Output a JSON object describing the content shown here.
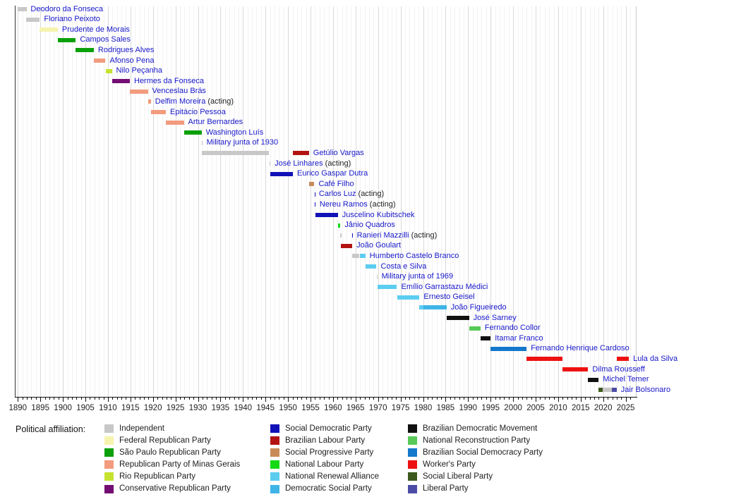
{
  "chart_data": {
    "type": "timeline",
    "description": "Timeline of Brazilian presidents by political affiliation",
    "legend_title": "Political affiliation:",
    "axis": {
      "start_year": 1890,
      "end_year": 2026,
      "minor_interval": 1,
      "label_interval": 5,
      "tick_labels": [
        "1890",
        "1895",
        "1900",
        "1905",
        "1910",
        "1915",
        "1920",
        "1925",
        "1930",
        "1935",
        "1940",
        "1945",
        "1950",
        "1955",
        "1960",
        "1965",
        "1970",
        "1975",
        "1980",
        "1985",
        "1990",
        "1995",
        "2000",
        "2005",
        "2010",
        "2015",
        "2020",
        "2025"
      ]
    },
    "parties": [
      {
        "id": "independent",
        "label": "Independent",
        "color": "#c8c8c8"
      },
      {
        "id": "federal_republican",
        "label": "Federal Republican Party",
        "color": "#f6f4ae"
      },
      {
        "id": "sp_republican",
        "label": "São Paulo Republican Party",
        "color": "#0ba00b"
      },
      {
        "id": "minas_republican",
        "label": "Republican Party of Minas Gerais",
        "color": "#f29b7d"
      },
      {
        "id": "rio_republican",
        "label": "Rio Republican Party",
        "color": "#c6e230"
      },
      {
        "id": "conservative_republican",
        "label": "Conservative Republican Party",
        "color": "#730d73"
      },
      {
        "id": "social_democratic",
        "label": "Social Democratic Party",
        "color": "#1111b8"
      },
      {
        "id": "brazilian_labour",
        "label": "Brazilian Labour Party",
        "color": "#b31212"
      },
      {
        "id": "social_progressive",
        "label": "Social Progressive Party",
        "color": "#c98a57"
      },
      {
        "id": "national_labour",
        "label": "National Labour Party",
        "color": "#16d916"
      },
      {
        "id": "national_renewal",
        "label": "National Renewal Alliance",
        "color": "#5ccdf0"
      },
      {
        "id": "democratic_social",
        "label": "Democratic Social Party",
        "color": "#3fb4e6"
      },
      {
        "id": "brazilian_democratic",
        "label": "Brazilian Democratic Movement",
        "color": "#111111"
      },
      {
        "id": "national_reconstruction",
        "label": "National Reconstruction Party",
        "color": "#57c957"
      },
      {
        "id": "social_democracy",
        "label": "Brazilian Social Democracy Party",
        "color": "#1478cc"
      },
      {
        "id": "workers",
        "label": "Worker's Party",
        "color": "#ee1111"
      },
      {
        "id": "social_liberal",
        "label": "Social Liberal Party",
        "color": "#3d591d"
      },
      {
        "id": "liberal",
        "label": "Liberal Party",
        "color": "#4c4ca6"
      }
    ],
    "legend_columns": [
      [
        "independent",
        "federal_republican",
        "sp_republican",
        "minas_republican",
        "rio_republican",
        "conservative_republican"
      ],
      [
        "social_democratic",
        "brazilian_labour",
        "social_progressive",
        "national_labour",
        "national_renewal",
        "democratic_social"
      ],
      [
        "brazilian_democratic",
        "national_reconstruction",
        "social_democracy",
        "workers",
        "social_liberal",
        "liberal"
      ]
    ],
    "acting_suffix": "(acting)",
    "presidents": [
      {
        "name": "Deodoro da Fonseca",
        "segments": [
          {
            "party": "independent",
            "start": 1889.87,
            "end": 1891.9
          }
        ]
      },
      {
        "name": "Floriano Peixoto",
        "segments": [
          {
            "party": "independent",
            "start": 1891.9,
            "end": 1894.87
          }
        ]
      },
      {
        "name": "Prudente de Morais",
        "segments": [
          {
            "party": "federal_republican",
            "start": 1894.87,
            "end": 1898.87
          }
        ]
      },
      {
        "name": "Campos Sales",
        "segments": [
          {
            "party": "sp_republican",
            "start": 1898.87,
            "end": 1902.87
          }
        ]
      },
      {
        "name": "Rodrigues Alves",
        "segments": [
          {
            "party": "sp_republican",
            "start": 1902.87,
            "end": 1906.87
          }
        ]
      },
      {
        "name": "Afonso Pena",
        "segments": [
          {
            "party": "minas_republican",
            "start": 1906.87,
            "end": 1909.46
          }
        ]
      },
      {
        "name": "Nilo Peçanha",
        "segments": [
          {
            "party": "rio_republican",
            "start": 1909.46,
            "end": 1910.87
          }
        ]
      },
      {
        "name": "Hermes da Fonseca",
        "segments": [
          {
            "party": "conservative_republican",
            "start": 1910.87,
            "end": 1914.87
          }
        ]
      },
      {
        "name": "Venceslau Brás",
        "segments": [
          {
            "party": "minas_republican",
            "start": 1914.87,
            "end": 1918.87
          }
        ]
      },
      {
        "name": "Delfim Moreira",
        "acting": true,
        "segments": [
          {
            "party": "minas_republican",
            "start": 1918.87,
            "end": 1919.54
          }
        ]
      },
      {
        "name": "Epitácio Pessoa",
        "segments": [
          {
            "party": "minas_republican",
            "start": 1919.54,
            "end": 1922.87
          }
        ]
      },
      {
        "name": "Artur Bernardes",
        "segments": [
          {
            "party": "minas_republican",
            "start": 1922.87,
            "end": 1926.87
          }
        ]
      },
      {
        "name": "Washington Luís",
        "segments": [
          {
            "party": "sp_republican",
            "start": 1926.87,
            "end": 1930.82
          }
        ]
      },
      {
        "name": "Military junta of 1930",
        "segments": [
          {
            "party": "independent",
            "start": 1930.82,
            "end": 1930.95
          }
        ]
      },
      {
        "name": "Getúlio Vargas",
        "segments": [
          {
            "party": "independent",
            "start": 1930.84,
            "end": 1945.83
          },
          {
            "party": "brazilian_labour",
            "start": 1951.08,
            "end": 1954.65
          }
        ]
      },
      {
        "name": "José Linhares",
        "acting": true,
        "segments": [
          {
            "party": "independent",
            "start": 1945.83,
            "end": 1946.08
          }
        ]
      },
      {
        "name": "Eurico Gaspar Dutra",
        "segments": [
          {
            "party": "social_democratic",
            "start": 1946.08,
            "end": 1951.08
          }
        ]
      },
      {
        "name": "Café Filho",
        "segments": [
          {
            "party": "social_progressive",
            "start": 1954.65,
            "end": 1955.86
          }
        ]
      },
      {
        "name": "Carlos Luz",
        "acting": true,
        "segments": [
          {
            "party": "social_democratic",
            "start": 1955.86,
            "end": 1955.92
          }
        ]
      },
      {
        "name": "Nereu Ramos",
        "acting": true,
        "segments": [
          {
            "party": "social_democratic",
            "start": 1955.92,
            "end": 1956.08
          }
        ]
      },
      {
        "name": "Juscelino Kubitschek",
        "segments": [
          {
            "party": "social_democratic",
            "start": 1956.08,
            "end": 1961.08
          }
        ]
      },
      {
        "name": "Jânio Quadros",
        "segments": [
          {
            "party": "national_labour",
            "start": 1961.08,
            "end": 1961.65
          }
        ]
      },
      {
        "name": "Ranieri Mazzilli",
        "acting": true,
        "segments": [
          {
            "party": "independent",
            "start": 1961.65,
            "end": 1961.72
          },
          {
            "party": "social_democratic",
            "start": 1964.26,
            "end": 1964.34
          }
        ]
      },
      {
        "name": "João Goulart",
        "segments": [
          {
            "party": "brazilian_labour",
            "start": 1961.68,
            "end": 1964.26
          }
        ]
      },
      {
        "name": "Humberto Castelo Branco",
        "segments": [
          {
            "party": "independent",
            "start": 1964.28,
            "end": 1965.9
          },
          {
            "party": "national_renewal",
            "start": 1965.9,
            "end": 1967.2
          }
        ]
      },
      {
        "name": "Costa e Silva",
        "segments": [
          {
            "party": "national_renewal",
            "start": 1967.2,
            "end": 1969.66
          }
        ]
      },
      {
        "name": "Military junta of 1969",
        "segments": [
          {
            "party": "independent",
            "start": 1969.66,
            "end": 1969.83
          }
        ]
      },
      {
        "name": "Emílio Garrastazu Médici",
        "segments": [
          {
            "party": "national_renewal",
            "start": 1969.83,
            "end": 1974.2
          }
        ]
      },
      {
        "name": "Ernesto Geisel",
        "segments": [
          {
            "party": "national_renewal",
            "start": 1974.2,
            "end": 1979.2
          }
        ]
      },
      {
        "name": "João Figueiredo",
        "segments": [
          {
            "party": "national_renewal",
            "start": 1979.2,
            "end": 1980.1
          },
          {
            "party": "democratic_social",
            "start": 1980.1,
            "end": 1985.2
          }
        ]
      },
      {
        "name": "José Sarney",
        "segments": [
          {
            "party": "brazilian_democratic",
            "start": 1985.2,
            "end": 1990.2
          }
        ]
      },
      {
        "name": "Fernando Collor",
        "segments": [
          {
            "party": "national_reconstruction",
            "start": 1990.2,
            "end": 1992.75
          }
        ]
      },
      {
        "name": "Itamar Franco",
        "segments": [
          {
            "party": "brazilian_democratic",
            "start": 1992.75,
            "end": 1995.0
          }
        ]
      },
      {
        "name": "Fernando Henrique Cardoso",
        "segments": [
          {
            "party": "social_democracy",
            "start": 1995.0,
            "end": 2003.0
          }
        ]
      },
      {
        "name": "Lula da Silva",
        "segments": [
          {
            "party": "workers",
            "start": 2003.0,
            "end": 2011.0
          },
          {
            "party": "workers",
            "start": 2023.0,
            "end": 2025.7
          }
        ]
      },
      {
        "name": "Dilma Rousseff",
        "segments": [
          {
            "party": "workers",
            "start": 2011.0,
            "end": 2016.66
          }
        ]
      },
      {
        "name": "Michel Temer",
        "segments": [
          {
            "party": "brazilian_democratic",
            "start": 2016.66,
            "end": 2019.0
          }
        ]
      },
      {
        "name": "Jair Bolsonaro",
        "segments": [
          {
            "party": "social_liberal",
            "start": 2019.0,
            "end": 2019.88
          },
          {
            "party": "independent",
            "start": 2019.88,
            "end": 2021.92
          },
          {
            "party": "liberal",
            "start": 2021.92,
            "end": 2023.0
          }
        ]
      }
    ]
  }
}
